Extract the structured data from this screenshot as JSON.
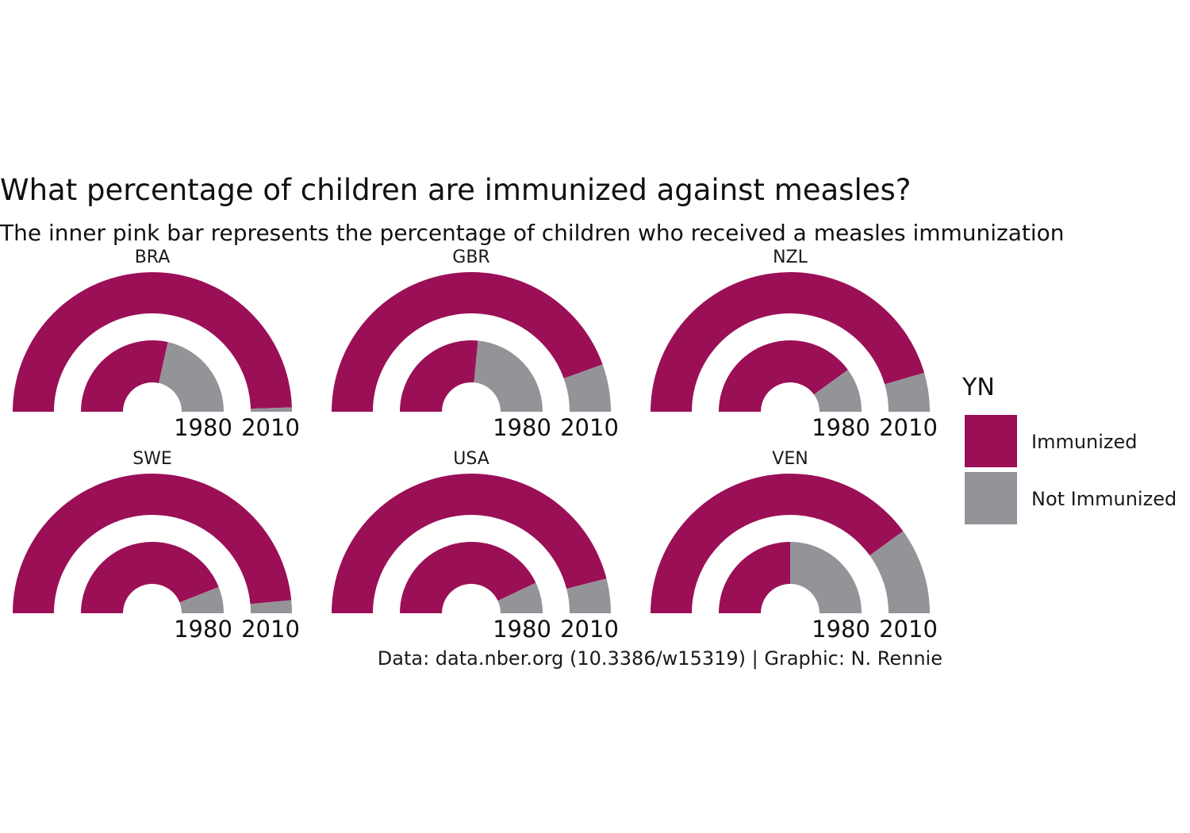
{
  "chart_data": {
    "type": "radial-bar",
    "title": "What percentage of children are immunized against measles?",
    "subtitle": "The inner pink bar represents the percentage of children who received a measles immunization",
    "caption": "Data: data.nber.org (10.3386/w15319) | Graphic: N. Rennie",
    "years": [
      "1980",
      "2010"
    ],
    "legend": {
      "title": "YN",
      "position": "right",
      "items": [
        {
          "label": "Immunized",
          "color": "#9b0f57"
        },
        {
          "label": "Not Immunized",
          "color": "#949398"
        }
      ]
    },
    "colors": {
      "immunized": "#9b0f57",
      "not_immunized": "#949398"
    },
    "facets": [
      {
        "country": "BRA",
        "immunized_1980": 57,
        "immunized_2010": 99
      },
      {
        "country": "GBR",
        "immunized_1980": 53,
        "immunized_2010": 89
      },
      {
        "country": "NZL",
        "immunized_1980": 80,
        "immunized_2010": 91
      },
      {
        "country": "SWE",
        "immunized_1980": 88,
        "immunized_2010": 97
      },
      {
        "country": "USA",
        "immunized_1980": 86,
        "immunized_2010": 92
      },
      {
        "country": "VEN",
        "immunized_1980": 50,
        "immunized_2010": 80
      }
    ]
  }
}
